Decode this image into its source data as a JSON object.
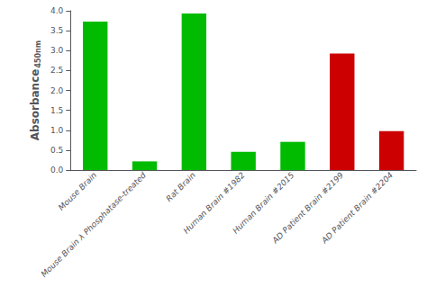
{
  "chart_data": {
    "type": "bar",
    "categories": [
      "Mouse Brain",
      "Mouse Brain λ Phosphatase-treated",
      "Rat Brain",
      "Human Brain #1982",
      "Human Brain #2015",
      "AD Patient Brain #2199",
      "AD Patient Brain #2204"
    ],
    "values": [
      3.73,
      0.22,
      3.93,
      0.46,
      0.71,
      2.93,
      0.98
    ],
    "colors": [
      "#00bb00",
      "#00bb00",
      "#00bb00",
      "#00bb00",
      "#00bb00",
      "#cc0000",
      "#cc0000"
    ],
    "ylabel": "Absorbance",
    "annotations": [
      "450nm"
    ],
    "ylim": [
      0,
      4.0
    ],
    "yticks": [
      {
        "value": 0.0,
        "label": "0.0"
      },
      {
        "value": 0.5,
        "label": "0.5"
      },
      {
        "value": 1.0,
        "label": "1.0"
      },
      {
        "value": 1.5,
        "label": "1.5"
      },
      {
        "value": 2.0,
        "label": "2.0"
      },
      {
        "value": 2.5,
        "label": "2.5"
      },
      {
        "value": 3.0,
        "label": "3.0"
      },
      {
        "value": 3.5,
        "label": "3.5"
      },
      {
        "value": 4.0,
        "label": "4.0"
      }
    ],
    "grid": false
  }
}
